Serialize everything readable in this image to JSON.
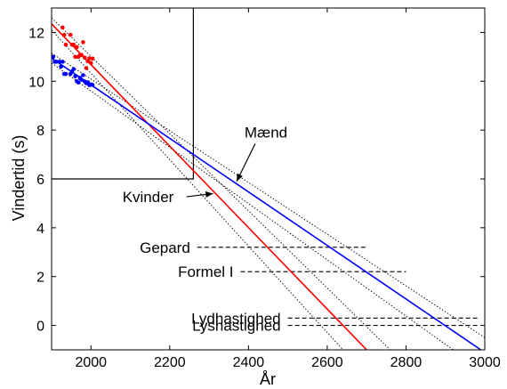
{
  "chart_data": {
    "type": "scatter",
    "title": "",
    "xlabel": "År",
    "ylabel": "Vindertid (s)",
    "xlim": [
      1900,
      3000
    ],
    "ylim": [
      -1,
      13
    ],
    "xticks": [
      2000,
      2200,
      2400,
      2600,
      2800,
      3000
    ],
    "yticks": [
      0,
      2,
      4,
      6,
      8,
      10,
      12
    ],
    "grid": false,
    "colors": {
      "women": "#ff0000",
      "men": "#0000ff",
      "ci": "#000000",
      "ref": "#000000"
    },
    "series": [
      {
        "key": "women",
        "x": [
          1928,
          1932,
          1936,
          1948,
          1952,
          1956,
          1960,
          1964,
          1968,
          1972,
          1976,
          1980,
          1984,
          1988,
          1992,
          1996,
          2000,
          2004
        ],
        "y": [
          12.2,
          11.9,
          11.5,
          11.9,
          11.5,
          11.5,
          11.0,
          11.4,
          11.0,
          11.07,
          11.08,
          11.6,
          10.97,
          10.54,
          10.82,
          10.94,
          10.75,
          10.93
        ]
      },
      {
        "key": "men",
        "x": [
          1900,
          1904,
          1908,
          1912,
          1920,
          1924,
          1928,
          1932,
          1936,
          1948,
          1952,
          1956,
          1960,
          1964,
          1968,
          1972,
          1976,
          1980,
          1984,
          1988,
          1992,
          1996,
          2000,
          2004
        ],
        "y": [
          11.0,
          11.0,
          10.8,
          10.8,
          10.8,
          10.6,
          10.8,
          10.3,
          10.3,
          10.3,
          10.4,
          10.5,
          10.2,
          10.0,
          9.95,
          10.14,
          10.06,
          10.25,
          9.99,
          9.92,
          9.96,
          9.84,
          9.87,
          9.85
        ]
      }
    ],
    "fits": [
      {
        "key": "women",
        "x": [
          1900,
          2700
        ],
        "y": [
          12.35,
          -1.0
        ]
      },
      {
        "key": "men",
        "x": [
          1900,
          2990
        ],
        "y": [
          10.95,
          -1.0
        ]
      }
    ],
    "confidence_bands": [
      {
        "key": "women-upper",
        "x": [
          1900,
          2760
        ],
        "y": [
          12.6,
          -1.0
        ]
      },
      {
        "key": "women-lower",
        "x": [
          1900,
          2640
        ],
        "y": [
          12.1,
          -1.0
        ]
      },
      {
        "key": "men-upper",
        "x": [
          1900,
          3000
        ],
        "y": [
          11.15,
          -0.5
        ]
      },
      {
        "key": "men-lower",
        "x": [
          1900,
          2920
        ],
        "y": [
          10.75,
          -1.0
        ]
      }
    ],
    "references": [
      {
        "key": "gepard",
        "label": "Gepard",
        "y": 3.2,
        "x": [
          2270,
          2700
        ]
      },
      {
        "key": "formel",
        "label": "Formel I",
        "y": 2.2,
        "x": [
          2380,
          2800
        ]
      },
      {
        "key": "lyd",
        "label": "Lydhastighed",
        "y": 0.3,
        "x": [
          2500,
          2985
        ]
      },
      {
        "key": "lys",
        "label": "Lyshastighed",
        "y": 0.0,
        "x": [
          2500,
          2985
        ]
      }
    ],
    "zoom_box": {
      "x": [
        1900,
        2260
      ],
      "y": [
        6,
        13
      ]
    },
    "annotations": [
      {
        "key": "maend",
        "label": "Mænd",
        "x": 2390,
        "y": 7.7,
        "arrow_to": [
          2370,
          5.9
        ]
      },
      {
        "key": "kvinder",
        "label": "Kvinder",
        "x": 2080,
        "y": 5.05,
        "arrow_to": [
          2310,
          5.4
        ]
      }
    ]
  }
}
